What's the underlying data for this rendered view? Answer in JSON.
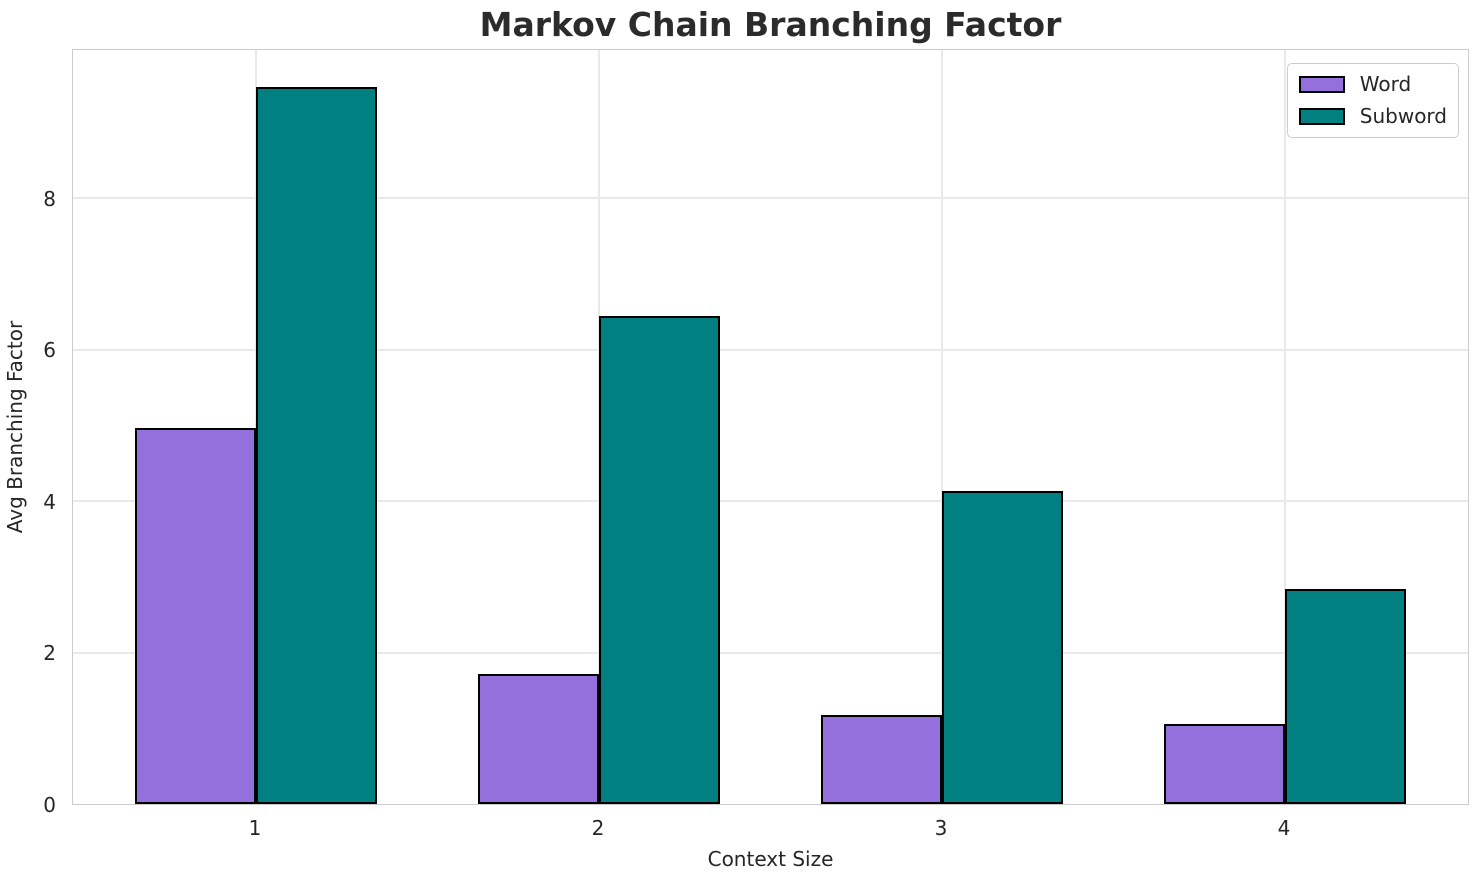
{
  "chart_data": {
    "type": "bar",
    "title": "Markov Chain Branching Factor",
    "xlabel": "Context Size",
    "ylabel": "Avg Branching Factor",
    "categories": [
      "1",
      "2",
      "3",
      "4"
    ],
    "series": [
      {
        "name": "Word",
        "color": "#9370DB",
        "values": [
          4.96,
          1.72,
          1.18,
          1.06
        ]
      },
      {
        "name": "Subword",
        "color": "#008080",
        "values": [
          9.46,
          6.44,
          4.13,
          2.84
        ]
      }
    ],
    "ylim": [
      0,
      9.98
    ],
    "yticks": [
      0,
      2,
      4,
      6,
      8
    ],
    "grid": "on",
    "legend": {
      "position": "upper-right",
      "entries": [
        "Word",
        "Subword"
      ]
    },
    "styles": {
      "bar_edge_color": "#000000",
      "grid_color": "#e9e9e9",
      "spine_color": "#cccccc",
      "text_color": "#262626",
      "background": "#ffffff"
    }
  }
}
